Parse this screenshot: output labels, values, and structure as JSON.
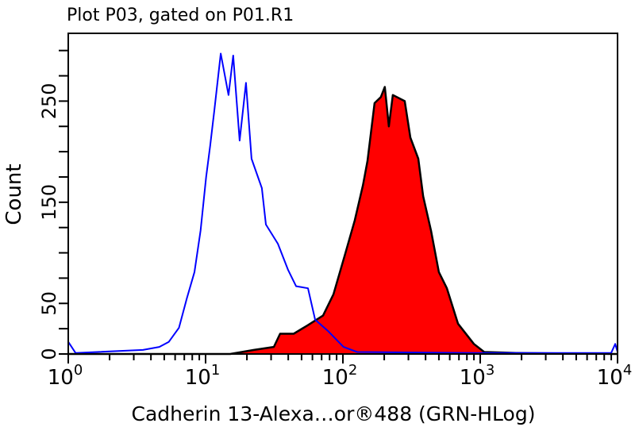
{
  "chart_data": {
    "type": "area",
    "title": "Plot P03, gated on P01.R1",
    "xlabel": "Cadherin 13-Alexa…or®488 (GRN-HLog)",
    "ylabel": "Count",
    "x_scale": "log",
    "xlim": [
      1,
      10000
    ],
    "ylim": [
      0,
      317
    ],
    "x_ticks": [
      {
        "base": "10",
        "exp": "0",
        "value": 1
      },
      {
        "base": "10",
        "exp": "1",
        "value": 10
      },
      {
        "base": "10",
        "exp": "2",
        "value": 100
      },
      {
        "base": "10",
        "exp": "3",
        "value": 1000
      },
      {
        "base": "10",
        "exp": "4",
        "value": 10000
      }
    ],
    "y_tick_labels": [
      "0",
      "50",
      "150",
      "250"
    ],
    "y_tick_values": [
      0,
      50,
      150,
      250
    ],
    "y_minor_step": 25,
    "grid": false,
    "series": [
      {
        "style": "outline",
        "color": "#0000ff",
        "points": [
          [
            1.0,
            12
          ],
          [
            1.13,
            1
          ],
          [
            3.5,
            4
          ],
          [
            4.6,
            7
          ],
          [
            5.4,
            12
          ],
          [
            6.4,
            26
          ],
          [
            7.3,
            55
          ],
          [
            8.3,
            81
          ],
          [
            9.2,
            122
          ],
          [
            10.1,
            175
          ],
          [
            10.8,
            206
          ],
          [
            11.6,
            242
          ],
          [
            12.9,
            297
          ],
          [
            14.7,
            256
          ],
          [
            15.9,
            295
          ],
          [
            17.7,
            211
          ],
          [
            19.7,
            268
          ],
          [
            21.6,
            193
          ],
          [
            25.7,
            164
          ],
          [
            27.5,
            128
          ],
          [
            33.6,
            109
          ],
          [
            39.9,
            83
          ],
          [
            45.6,
            67
          ],
          [
            55.7,
            65
          ],
          [
            62.8,
            34
          ],
          [
            77.6,
            23
          ],
          [
            101,
            7
          ],
          [
            127,
            2
          ],
          [
            935,
            1
          ],
          [
            8990,
            1
          ],
          [
            9620,
            10
          ],
          [
            10000,
            2
          ]
        ]
      },
      {
        "style": "filled",
        "color": "#ff0000",
        "outline": "#000000",
        "points": [
          [
            1.0,
            0
          ],
          [
            15.1,
            0
          ],
          [
            22.5,
            4
          ],
          [
            31.4,
            7
          ],
          [
            34.9,
            20
          ],
          [
            43.8,
            20
          ],
          [
            54.9,
            28
          ],
          [
            71.7,
            38
          ],
          [
            85.3,
            59
          ],
          [
            104,
            99
          ],
          [
            122,
            132
          ],
          [
            140,
            167
          ],
          [
            151,
            191
          ],
          [
            170,
            248
          ],
          [
            189,
            254
          ],
          [
            202,
            264
          ],
          [
            216,
            225
          ],
          [
            231,
            256
          ],
          [
            282,
            250
          ],
          [
            310,
            214
          ],
          [
            354,
            193
          ],
          [
            384,
            156
          ],
          [
            438,
            122
          ],
          [
            500,
            81
          ],
          [
            572,
            65
          ],
          [
            689,
            30
          ],
          [
            899,
            10
          ],
          [
            1069,
            2
          ],
          [
            1820,
            1
          ],
          [
            8990,
            0
          ],
          [
            10000,
            0
          ]
        ]
      }
    ]
  }
}
